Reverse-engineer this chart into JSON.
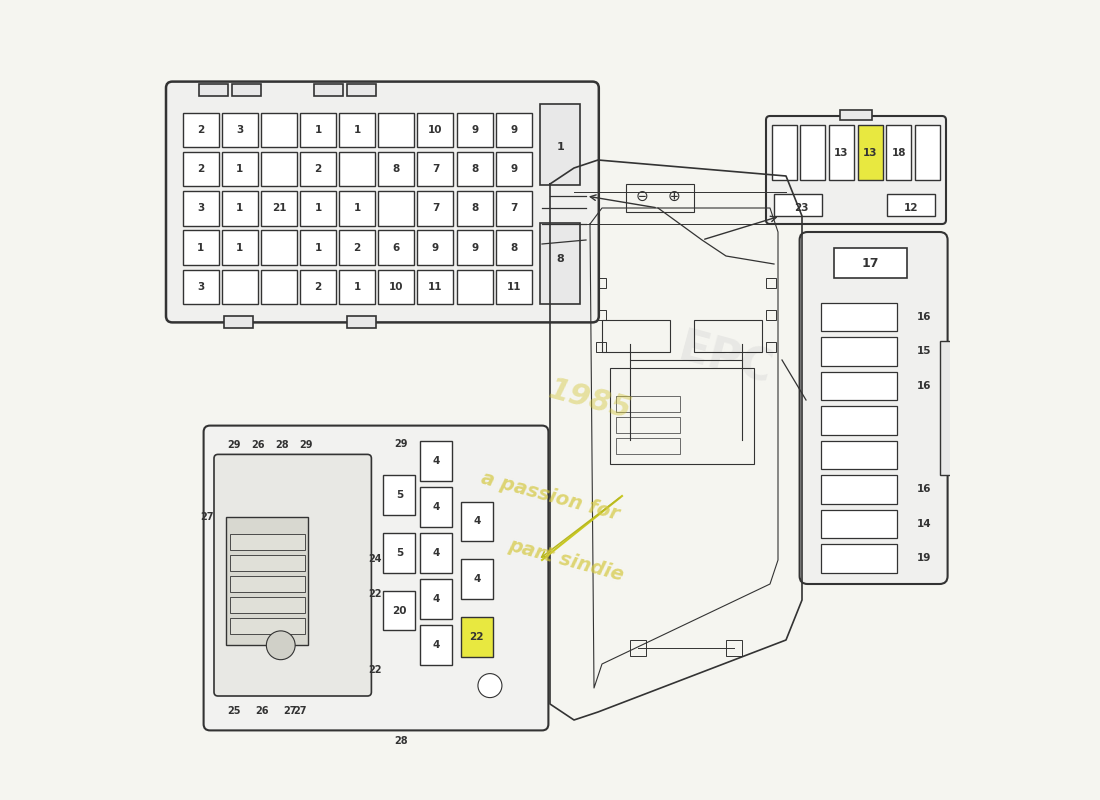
{
  "bg_color": "#f5f5f0",
  "line_color": "#333333",
  "fuse_bg": "#ffffff",
  "highlight_yellow": "#e8e840",
  "watermark_color": "#d4c840",
  "top_fuse_box": {
    "rows": [
      [
        "2",
        "3",
        "",
        "1",
        "1",
        "",
        "10",
        "9",
        "9"
      ],
      [
        "2",
        "1",
        "",
        "2",
        "",
        "8",
        "7",
        "8",
        "9"
      ],
      [
        "3",
        "1",
        "21",
        "1",
        "1",
        "",
        "7",
        "8",
        "7"
      ],
      [
        "1",
        "1",
        "",
        "1",
        "2",
        "6",
        "9",
        "9",
        "8"
      ],
      [
        "3",
        "",
        "",
        "2",
        "1",
        "10",
        "11",
        "",
        "11"
      ]
    ]
  },
  "top_right_box": {
    "cells": [
      "",
      "",
      "13",
      "13",
      "18",
      ""
    ],
    "cell_highlights": [
      false,
      false,
      false,
      true,
      false,
      false
    ],
    "bottom_labels": [
      "23",
      "12"
    ]
  },
  "right_fuse_box": {
    "title": "17",
    "fuses": [
      "16",
      "15",
      "16",
      "",
      "",
      "16",
      "14",
      "19"
    ]
  },
  "watermark_text1": "a passion for",
  "watermark_text2": "part sindie",
  "watermark_year": "1985"
}
